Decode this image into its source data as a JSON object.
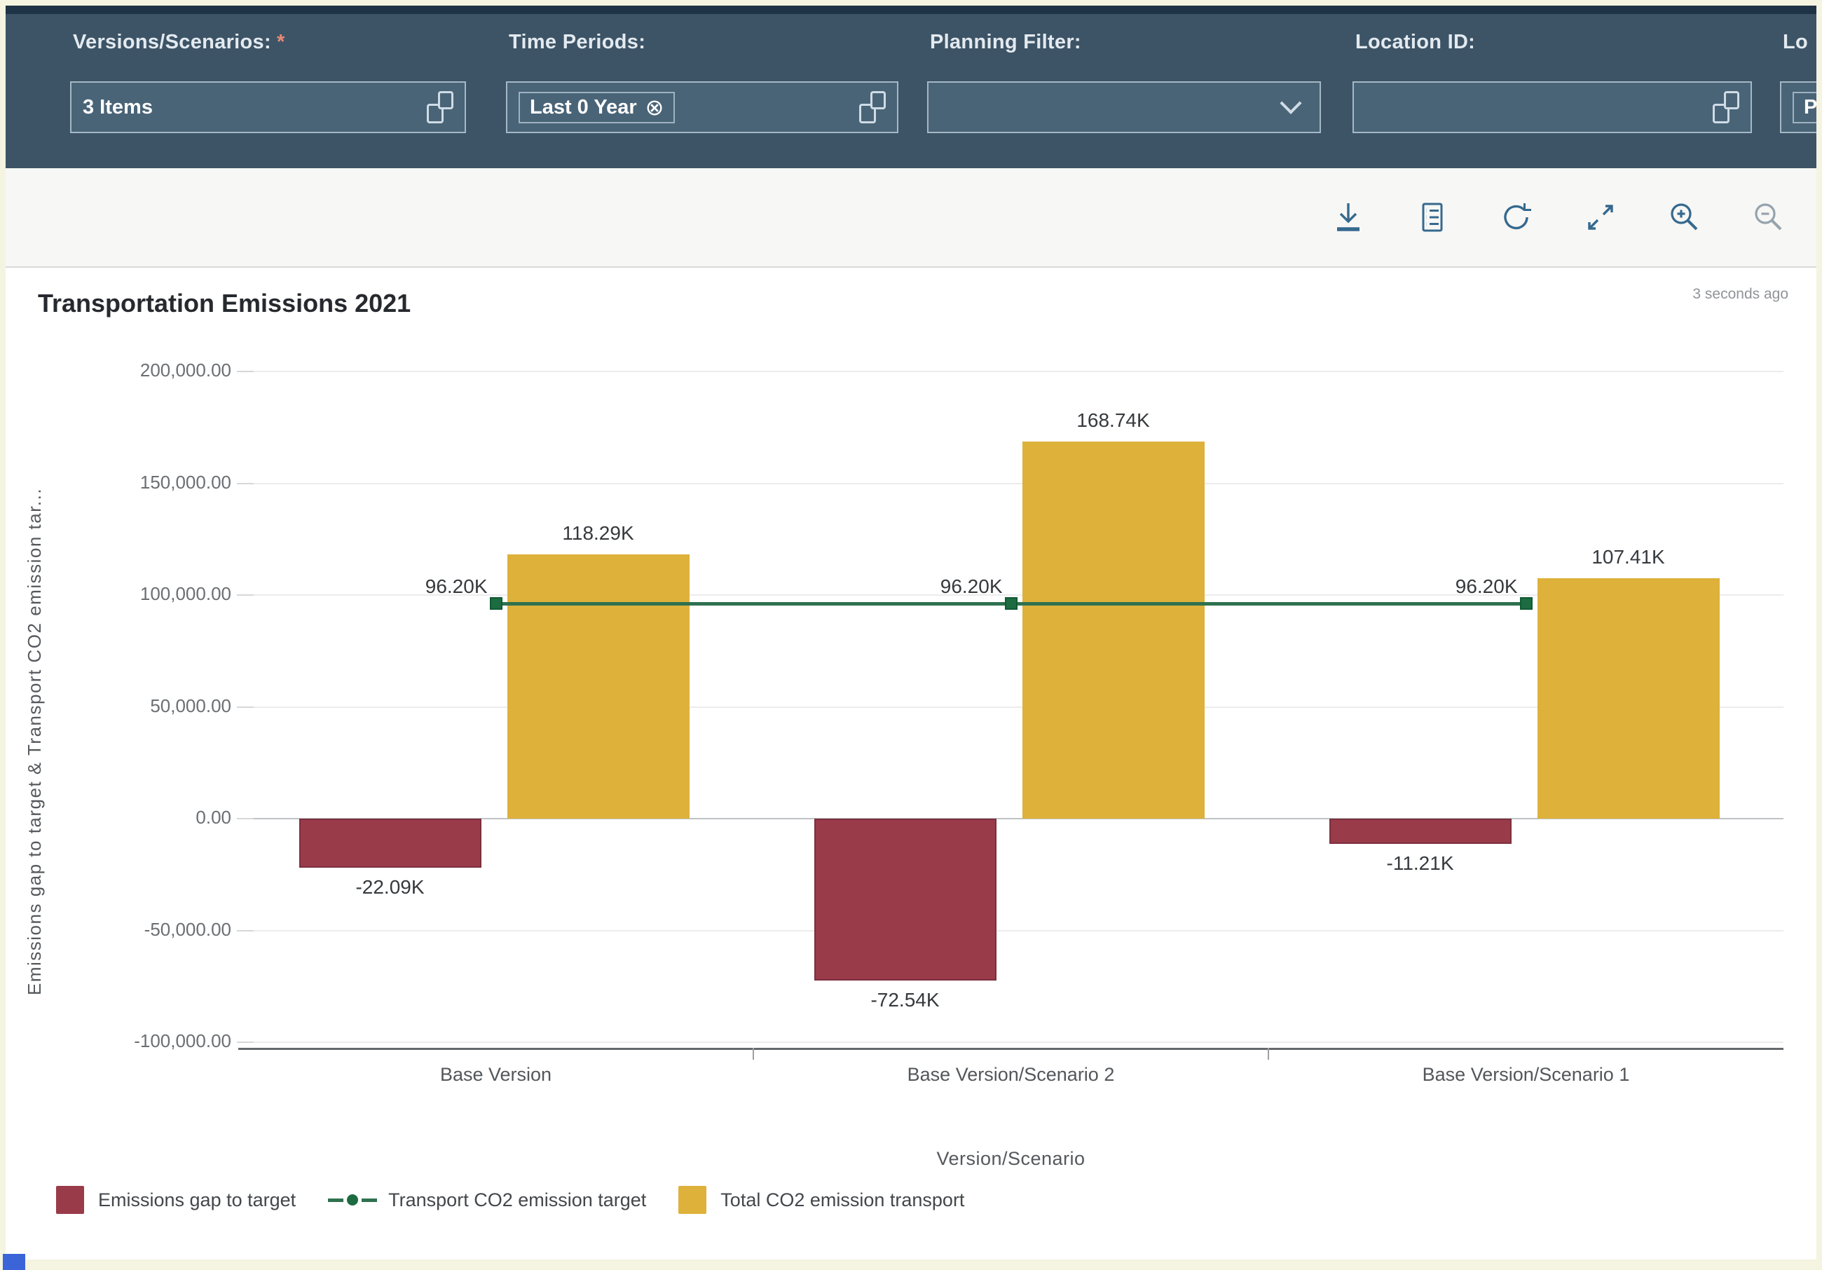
{
  "filter_bar": {
    "filters": [
      {
        "label": "Versions/Scenarios:",
        "required_mark": "*",
        "value": "3 Items"
      },
      {
        "label": "Time Periods:",
        "token": "Last 0 Year",
        "remove_icon": "⊗"
      },
      {
        "label": "Planning Filter:",
        "value": ""
      },
      {
        "label": "Location ID:",
        "value": ""
      },
      {
        "label": "Lo",
        "token": "P"
      }
    ]
  },
  "toolbar": {
    "buttons": [
      "download",
      "table-view",
      "refresh",
      "expand",
      "zoom-in",
      "zoom-out"
    ]
  },
  "chart": {
    "title": "Transportation Emissions 2021",
    "timestamp": "3 seconds ago"
  },
  "colors": {
    "filter_bar_bg": "#3d5466",
    "bar_negative": "#9a3b4a",
    "bar_negative_border": "#7c2f3e",
    "bar_positive": "#ddb13a",
    "target_line": "#2f7150",
    "target_marker": "#1c6b41",
    "toolbar_icon_blue": "#35698f",
    "toolbar_icon_disabled": "#95a3ad"
  },
  "chart_data": {
    "type": "bar",
    "subtype": "combination-bar-line",
    "title": "Transportation Emissions 2021",
    "categories": [
      "Base Version",
      "Base Version/Scenario 2",
      "Base Version/Scenario 1"
    ],
    "series": [
      {
        "name": "Emissions gap to target",
        "type": "bar",
        "color": "#9a3b4a",
        "values": [
          -22090,
          -72540,
          -11210
        ],
        "labels": [
          "-22.09K",
          "-72.54K",
          "-11.21K"
        ]
      },
      {
        "name": "Transport CO2 emission target",
        "type": "line",
        "color": "#2f7150",
        "values": [
          96200,
          96200,
          96200
        ],
        "labels": [
          "96.20K",
          "96.20K",
          "96.20K"
        ]
      },
      {
        "name": "Total CO2 emission transport",
        "type": "bar",
        "color": "#ddb13a",
        "values": [
          118290,
          168740,
          107410
        ],
        "labels": [
          "118.29K",
          "168.74K",
          "107.41K"
        ]
      }
    ],
    "xlabel": "Version/Scenario",
    "ylabel": "Emissions gap to target & Transport CO2 emission tar...",
    "ylim": [
      -100000,
      200000
    ],
    "yticks": {
      "values": [
        200000,
        150000,
        100000,
        50000,
        0,
        -50000,
        -100000
      ],
      "labels": [
        "200,000.00",
        "150,000.00",
        "100,000.00",
        "50,000.00",
        "0.00",
        "-50,000.00",
        "-100,000.00"
      ]
    },
    "grid": true,
    "legend_position": "bottom"
  }
}
